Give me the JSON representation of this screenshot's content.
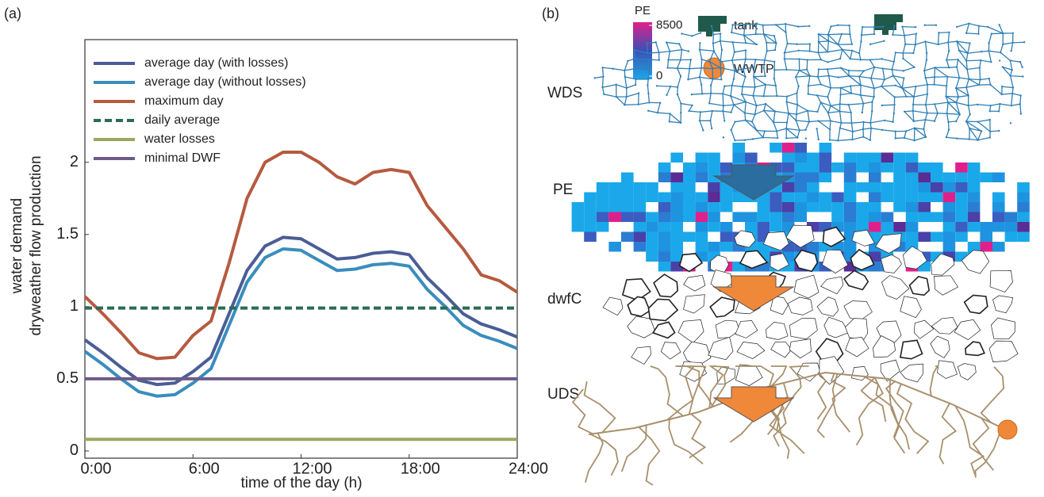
{
  "chart_data": {
    "type": "line",
    "panel_label": "(a)",
    "x_label": "time of the day (h)",
    "y_label": [
      "water demand",
      "dryweather flow production"
    ],
    "x": [
      0,
      1,
      2,
      3,
      4,
      5,
      6,
      7,
      8,
      9,
      10,
      11,
      12,
      13,
      14,
      15,
      16,
      17,
      18,
      19,
      20,
      21,
      22,
      23,
      24
    ],
    "xlim": [
      0,
      24
    ],
    "xticks": [
      {
        "value": 0,
        "label": "0:00"
      },
      {
        "value": 6,
        "label": "6:00"
      },
      {
        "value": 12,
        "label": "12:00"
      },
      {
        "value": 18,
        "label": "18:00"
      },
      {
        "value": 24,
        "label": "24:00"
      }
    ],
    "ylim": [
      -0.05,
      2.85
    ],
    "yticks": [
      0,
      0.5,
      1,
      1.5,
      2
    ],
    "legend": "upper left",
    "series": [
      {
        "name": "average day (with losses)",
        "color": "#4a5d96",
        "style": "solid",
        "values": [
          0.77,
          0.68,
          0.58,
          0.49,
          0.46,
          0.47,
          0.55,
          0.65,
          0.95,
          1.25,
          1.42,
          1.48,
          1.47,
          1.4,
          1.33,
          1.34,
          1.37,
          1.38,
          1.36,
          1.2,
          1.08,
          0.95,
          0.88,
          0.84,
          0.79
        ]
      },
      {
        "name": "average day (without losses)",
        "color": "#3a8dbd",
        "style": "solid",
        "values": [
          0.69,
          0.6,
          0.5,
          0.41,
          0.38,
          0.39,
          0.47,
          0.57,
          0.87,
          1.17,
          1.34,
          1.4,
          1.39,
          1.32,
          1.25,
          1.26,
          1.29,
          1.3,
          1.28,
          1.12,
          1.0,
          0.87,
          0.8,
          0.76,
          0.71
        ]
      },
      {
        "name": "maximum day",
        "color": "#b65a3f",
        "style": "solid",
        "values": [
          1.07,
          0.95,
          0.82,
          0.68,
          0.64,
          0.65,
          0.8,
          0.9,
          1.3,
          1.75,
          2.0,
          2.07,
          2.07,
          2.0,
          1.9,
          1.85,
          1.93,
          1.95,
          1.93,
          1.7,
          1.55,
          1.4,
          1.22,
          1.18,
          1.1
        ]
      },
      {
        "name": "daily average",
        "color": "#2a6b55",
        "style": "dashed",
        "values": [
          0.99,
          0.99,
          0.99,
          0.99,
          0.99,
          0.99,
          0.99,
          0.99,
          0.99,
          0.99,
          0.99,
          0.99,
          0.99,
          0.99,
          0.99,
          0.99,
          0.99,
          0.99,
          0.99,
          0.99,
          0.99,
          0.99,
          0.99,
          0.99,
          0.99
        ]
      },
      {
        "name": "water losses",
        "color": "#9aa85e",
        "style": "solid",
        "values": [
          0.08,
          0.08,
          0.08,
          0.08,
          0.08,
          0.08,
          0.08,
          0.08,
          0.08,
          0.08,
          0.08,
          0.08,
          0.08,
          0.08,
          0.08,
          0.08,
          0.08,
          0.08,
          0.08,
          0.08,
          0.08,
          0.08,
          0.08,
          0.08,
          0.08
        ]
      },
      {
        "name": "minimal DWF",
        "color": "#6e5a8a",
        "style": "solid",
        "values": [
          0.5,
          0.5,
          0.5,
          0.5,
          0.5,
          0.5,
          0.5,
          0.5,
          0.5,
          0.5,
          0.5,
          0.5,
          0.5,
          0.5,
          0.5,
          0.5,
          0.5,
          0.5,
          0.5,
          0.5,
          0.5,
          0.5,
          0.5,
          0.5,
          0.5
        ]
      }
    ]
  },
  "diagram": {
    "panel_label": "(b)",
    "colorbar": {
      "label": "PE",
      "ticks": [
        0,
        8500
      ]
    },
    "legend": {
      "tank": "tank",
      "wwtp": "WWTP"
    },
    "layers": [
      "WDS",
      "PE",
      "dwfC",
      "UDS"
    ]
  }
}
